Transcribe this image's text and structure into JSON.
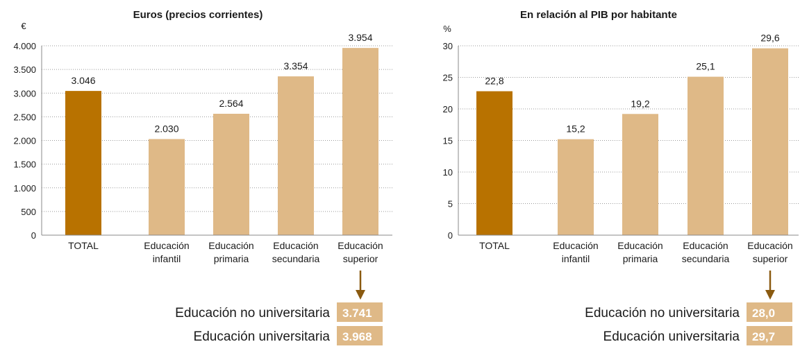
{
  "chart_data": [
    {
      "type": "bar",
      "title": "Euros (precios corrientes)",
      "y_label": "€",
      "categories": [
        "TOTAL",
        "Educación infantil",
        "Educación primaria",
        "Educación secundaria",
        "Educación superior"
      ],
      "values": [
        3046,
        2030,
        2564,
        3354,
        3954
      ],
      "value_labels": [
        "3.046",
        "2.030",
        "2.564",
        "3.354",
        "3.954"
      ],
      "colors": [
        "#b87200",
        "#dfb987",
        "#dfb987",
        "#dfb987",
        "#dfb987"
      ],
      "ylim": [
        0,
        4000
      ],
      "yticks": [
        0,
        500,
        {
          "value": 1000,
          "label": "1.000"
        },
        {
          "value": 1500,
          "label": "1.500"
        },
        {
          "value": 2000,
          "label": "2.000"
        },
        {
          "value": 2500,
          "label": "2.500"
        },
        {
          "value": 3000,
          "label": "3.000"
        },
        {
          "value": 3500,
          "label": "3.500"
        },
        {
          "value": 4000,
          "label": "4.000"
        }
      ],
      "grid": true,
      "breakdown": [
        {
          "name": "Educación no universitaria",
          "value": 3741,
          "label": "3.741"
        },
        {
          "name": "Educación universitaria",
          "value": 3968,
          "label": "3.968"
        }
      ]
    },
    {
      "type": "bar",
      "title": "En relación al PIB por habitante",
      "y_label": "%",
      "categories": [
        "TOTAL",
        "Educación infantil",
        "Educación primaria",
        "Educación secundaria",
        "Educación superior"
      ],
      "values": [
        22.8,
        15.2,
        19.2,
        25.1,
        29.6
      ],
      "value_labels": [
        "22,8",
        "15,2",
        "19,2",
        "25,1",
        "29,6"
      ],
      "colors": [
        "#b87200",
        "#dfb987",
        "#dfb987",
        "#dfb987",
        "#dfb987"
      ],
      "ylim": [
        0,
        30
      ],
      "yticks": [
        0,
        5,
        10,
        15,
        20,
        25,
        30
      ],
      "grid": true,
      "breakdown": [
        {
          "name": "Educación no universitaria",
          "value": 28.0,
          "label": "28,0"
        },
        {
          "name": "Educación universitaria",
          "value": 29.7,
          "label": "29,7"
        }
      ]
    }
  ]
}
